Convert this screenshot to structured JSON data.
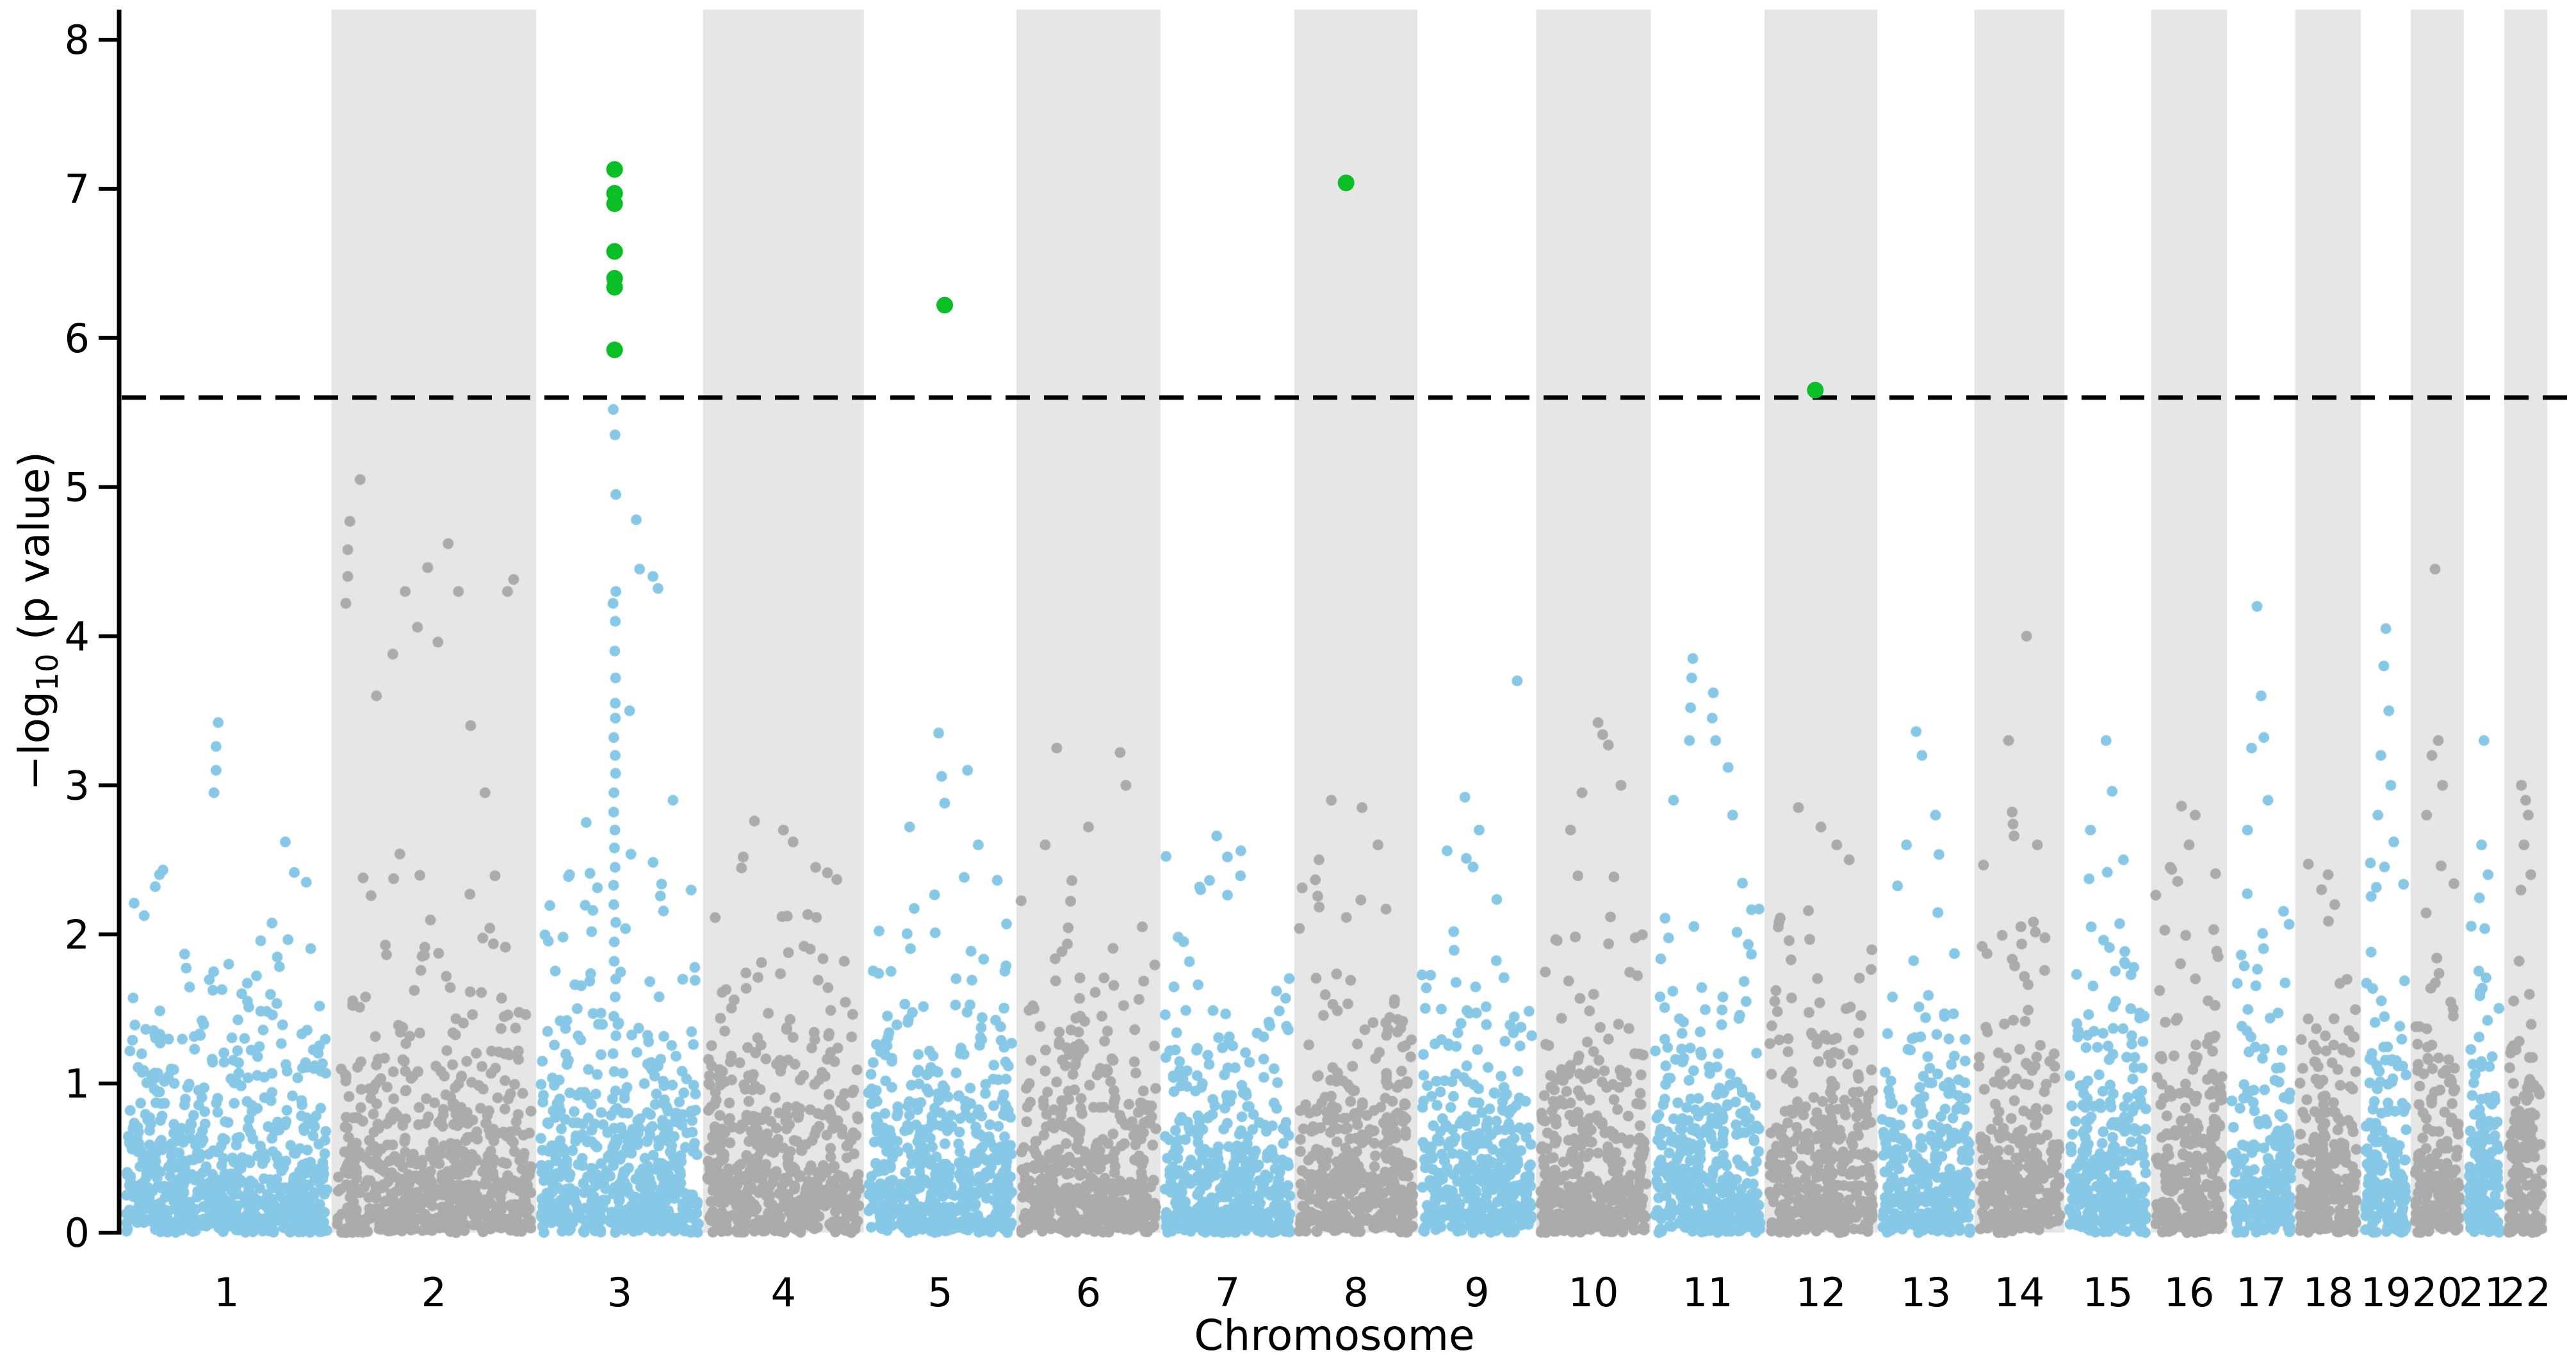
{
  "chart_data": {
    "type": "scatter",
    "subtype": "manhattan-plot",
    "title": "",
    "xlabel": "Chromosome",
    "ylabel": "−log₁₀ (p value)",
    "ylabel_parts": {
      "prefix": "−log",
      "subscript": "10",
      "suffix": " (p value)"
    },
    "ylim": [
      0,
      8.2
    ],
    "yticks": [
      "0",
      "1",
      "2",
      "3",
      "4",
      "5",
      "6",
      "7",
      "8"
    ],
    "grid": false,
    "legend": "none",
    "threshold_line": {
      "y": 5.6,
      "style": "dashed",
      "color": "#000000"
    },
    "colors": {
      "odd_chromosome_points": "#87c8e6",
      "even_chromosome_points": "#ababab",
      "even_band_background": "#e6e6e6",
      "significant_points": "#0abf25",
      "axis": "#000000",
      "background": "#ffffff"
    },
    "point_radius": 8.5,
    "significant_point_radius": 13,
    "chromosomes": [
      {
        "label": "1",
        "weight": 249,
        "outliers": [
          [
            0.16,
            2.32
          ],
          [
            0.18,
            2.4
          ],
          [
            0.44,
            2.95
          ],
          [
            0.45,
            3.1
          ],
          [
            0.45,
            3.26
          ],
          [
            0.46,
            3.42
          ],
          [
            0.78,
            2.62
          ],
          [
            0.88,
            2.35
          ]
        ]
      },
      {
        "label": "2",
        "weight": 243,
        "outliers": [
          [
            0.07,
            4.22
          ],
          [
            0.08,
            4.4
          ],
          [
            0.08,
            4.58
          ],
          [
            0.09,
            4.77
          ],
          [
            0.14,
            5.05
          ],
          [
            0.22,
            3.6
          ],
          [
            0.3,
            3.88
          ],
          [
            0.36,
            4.3
          ],
          [
            0.42,
            4.06
          ],
          [
            0.47,
            4.46
          ],
          [
            0.52,
            3.96
          ],
          [
            0.57,
            4.62
          ],
          [
            0.62,
            4.3
          ],
          [
            0.68,
            3.4
          ],
          [
            0.86,
            4.3
          ],
          [
            0.89,
            4.38
          ],
          [
            0.75,
            2.95
          ]
        ]
      },
      {
        "label": "3",
        "weight": 198,
        "outliers": [
          [
            0.6,
            4.78
          ],
          [
            0.62,
            4.45
          ],
          [
            0.7,
            4.4
          ],
          [
            0.73,
            4.32
          ],
          [
            0.56,
            3.5
          ],
          [
            0.3,
            2.75
          ],
          [
            0.82,
            2.9
          ],
          [
            0.2,
            2.4
          ]
        ]
      },
      {
        "label": "4",
        "weight": 191,
        "outliers": [
          [
            0.25,
            2.52
          ],
          [
            0.32,
            2.76
          ],
          [
            0.5,
            2.7
          ],
          [
            0.56,
            2.62
          ],
          [
            0.7,
            2.45
          ]
        ]
      },
      {
        "label": "5",
        "weight": 181,
        "outliers": [
          [
            0.49,
            3.35
          ],
          [
            0.51,
            3.06
          ],
          [
            0.53,
            2.88
          ],
          [
            0.3,
            2.72
          ],
          [
            0.68,
            3.1
          ],
          [
            0.75,
            2.6
          ]
        ]
      },
      {
        "label": "6",
        "weight": 171,
        "outliers": [
          [
            0.28,
            3.25
          ],
          [
            0.72,
            3.22
          ],
          [
            0.76,
            3.0
          ],
          [
            0.5,
            2.72
          ],
          [
            0.2,
            2.6
          ]
        ]
      },
      {
        "label": "7",
        "weight": 159,
        "outliers": [
          [
            0.42,
            2.66
          ],
          [
            0.5,
            2.52
          ],
          [
            0.6,
            2.56
          ],
          [
            0.3,
            2.3
          ]
        ]
      },
      {
        "label": "8",
        "weight": 146,
        "outliers": [
          [
            0.3,
            2.9
          ],
          [
            0.55,
            2.85
          ],
          [
            0.68,
            2.6
          ],
          [
            0.2,
            2.5
          ]
        ]
      },
      {
        "label": "9",
        "weight": 141,
        "outliers": [
          [
            0.84,
            3.7
          ],
          [
            0.4,
            2.92
          ],
          [
            0.52,
            2.7
          ],
          [
            0.25,
            2.56
          ]
        ]
      },
      {
        "label": "10",
        "weight": 136,
        "outliers": [
          [
            0.54,
            3.42
          ],
          [
            0.58,
            3.34
          ],
          [
            0.63,
            3.27
          ],
          [
            0.4,
            2.95
          ],
          [
            0.3,
            2.7
          ],
          [
            0.74,
            3.0
          ]
        ]
      },
      {
        "label": "11",
        "weight": 135,
        "outliers": [
          [
            0.34,
            3.3
          ],
          [
            0.35,
            3.52
          ],
          [
            0.36,
            3.72
          ],
          [
            0.37,
            3.85
          ],
          [
            0.54,
            3.45
          ],
          [
            0.55,
            3.62
          ],
          [
            0.57,
            3.3
          ],
          [
            0.2,
            2.9
          ],
          [
            0.68,
            3.12
          ],
          [
            0.72,
            2.8
          ]
        ]
      },
      {
        "label": "12",
        "weight": 134,
        "outliers": [
          [
            0.3,
            2.85
          ],
          [
            0.5,
            2.72
          ],
          [
            0.64,
            2.6
          ],
          [
            0.75,
            2.5
          ]
        ]
      },
      {
        "label": "13",
        "weight": 115,
        "outliers": [
          [
            0.4,
            3.36
          ],
          [
            0.46,
            3.2
          ],
          [
            0.6,
            2.8
          ],
          [
            0.3,
            2.6
          ]
        ]
      },
      {
        "label": "14",
        "weight": 107,
        "outliers": [
          [
            0.58,
            4.0
          ],
          [
            0.38,
            3.3
          ],
          [
            0.42,
            2.82
          ],
          [
            0.43,
            2.74
          ],
          [
            0.44,
            2.66
          ],
          [
            0.7,
            2.6
          ]
        ]
      },
      {
        "label": "15",
        "weight": 103,
        "outliers": [
          [
            0.48,
            3.3
          ],
          [
            0.55,
            2.96
          ],
          [
            0.3,
            2.7
          ],
          [
            0.68,
            2.5
          ]
        ]
      },
      {
        "label": "16",
        "weight": 90,
        "outliers": [
          [
            0.4,
            2.86
          ],
          [
            0.58,
            2.8
          ],
          [
            0.5,
            2.6
          ],
          [
            0.25,
            2.45
          ]
        ]
      },
      {
        "label": "17",
        "weight": 81,
        "outliers": [
          [
            0.44,
            4.2
          ],
          [
            0.5,
            3.6
          ],
          [
            0.54,
            3.32
          ],
          [
            0.36,
            3.25
          ],
          [
            0.6,
            2.9
          ],
          [
            0.3,
            2.7
          ]
        ]
      },
      {
        "label": "18",
        "weight": 78,
        "outliers": [
          [
            0.5,
            2.4
          ],
          [
            0.4,
            2.3
          ],
          [
            0.6,
            2.2
          ]
        ]
      },
      {
        "label": "19",
        "weight": 59,
        "outliers": [
          [
            0.5,
            4.05
          ],
          [
            0.46,
            3.8
          ],
          [
            0.56,
            3.5
          ],
          [
            0.4,
            3.2
          ],
          [
            0.6,
            3.0
          ],
          [
            0.34,
            2.8
          ],
          [
            0.66,
            2.62
          ]
        ]
      },
      {
        "label": "20",
        "weight": 63,
        "outliers": [
          [
            0.46,
            4.45
          ],
          [
            0.52,
            3.3
          ],
          [
            0.4,
            3.2
          ],
          [
            0.6,
            3.0
          ],
          [
            0.3,
            2.8
          ]
        ]
      },
      {
        "label": "21",
        "weight": 48,
        "outliers": [
          [
            0.5,
            3.3
          ],
          [
            0.44,
            2.6
          ],
          [
            0.6,
            2.4
          ]
        ]
      },
      {
        "label": "22",
        "weight": 51,
        "outliers": [
          [
            0.4,
            3.0
          ],
          [
            0.5,
            2.9
          ],
          [
            0.56,
            2.8
          ],
          [
            0.46,
            2.6
          ],
          [
            0.62,
            2.4
          ]
        ]
      }
    ],
    "chr3_spike_column": {
      "chromosome": "3",
      "rel_x": 0.47,
      "values": [
        5.52,
        5.35,
        4.95,
        4.3,
        4.22,
        4.1,
        3.9,
        3.72,
        3.55,
        3.45,
        3.32,
        3.2,
        3.08,
        2.95,
        2.82,
        2.7,
        2.58,
        2.45,
        2.33,
        2.2,
        2.08,
        1.95,
        1.82,
        1.7,
        1.58,
        1.45,
        1.32,
        1.2,
        1.08,
        0.95,
        0.82,
        0.7,
        0.58,
        0.45
      ]
    },
    "significant_points": [
      {
        "chromosome": "3",
        "rel_x": 0.47,
        "values": [
          7.13,
          6.97,
          6.9,
          6.58,
          6.4,
          6.34,
          5.92
        ]
      },
      {
        "chromosome": "5",
        "rel_x": 0.53,
        "values": [
          6.22
        ]
      },
      {
        "chromosome": "8",
        "rel_x": 0.42,
        "values": [
          7.04
        ]
      },
      {
        "chromosome": "12",
        "rel_x": 0.45,
        "values": [
          5.65
        ]
      }
    ]
  }
}
